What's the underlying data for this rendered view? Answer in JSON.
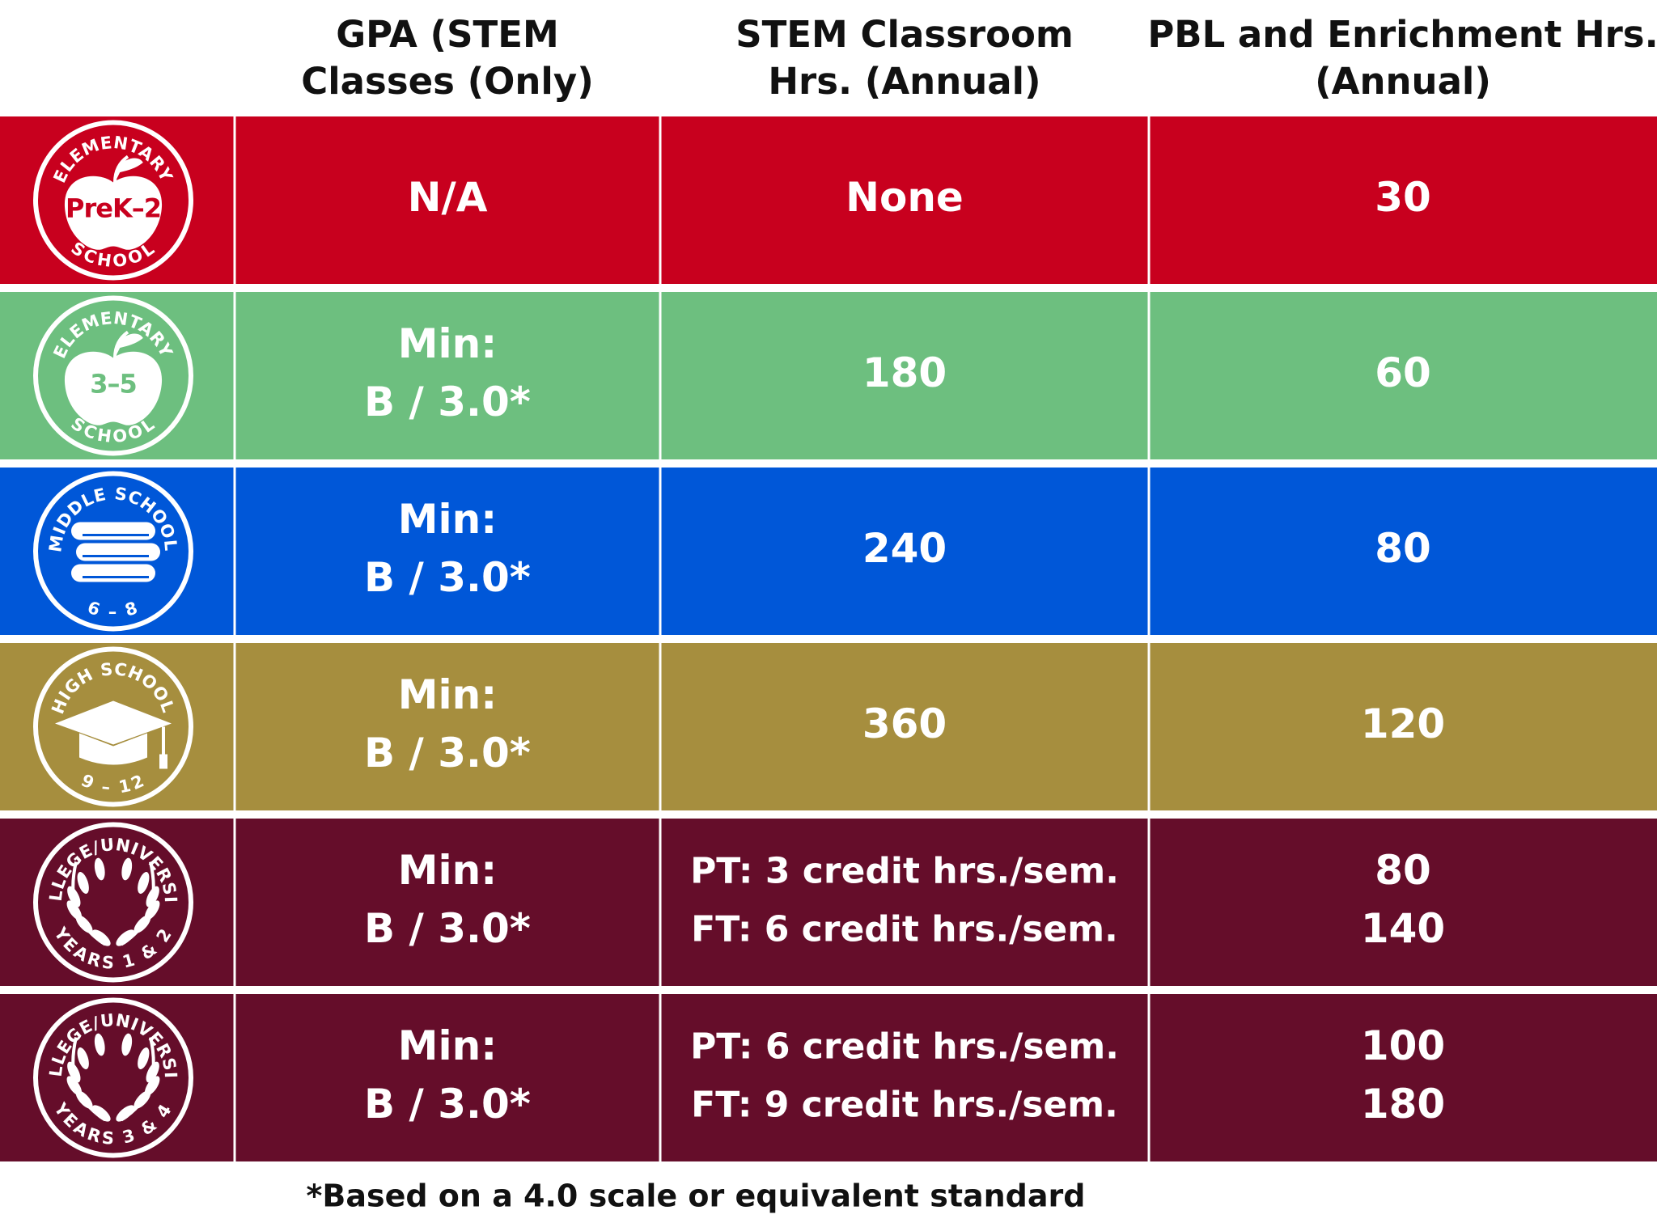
{
  "header": {
    "columns": [
      [
        "GPA (STEM",
        "Classes (Only)"
      ],
      [
        "STEM Classroom",
        "Hrs. (Annual)"
      ],
      [
        "PBL and Enrichment Hrs.",
        "(Annual)"
      ]
    ]
  },
  "table": {
    "rows": [
      {
        "badge": {
          "top": "ELEMENTARY",
          "center": "PreK–2",
          "bottom": "SCHOOL"
        },
        "gpa": [
          "N/A"
        ],
        "stem": [
          "None"
        ],
        "pbl": [
          "30"
        ]
      },
      {
        "badge": {
          "top": "ELEMENTARY",
          "center": "3–5",
          "bottom": "SCHOOL"
        },
        "gpa": [
          "Min:",
          "B / 3.0*"
        ],
        "stem": [
          "180"
        ],
        "pbl": [
          "60"
        ]
      },
      {
        "badge": {
          "top": "MIDDLE SCHOOL",
          "bottom": "6 – 8"
        },
        "gpa": [
          "Min:",
          "B / 3.0*"
        ],
        "stem": [
          "240"
        ],
        "pbl": [
          "80"
        ]
      },
      {
        "badge": {
          "top": "HIGH SCHOOL",
          "bottom": "9 – 12"
        },
        "gpa": [
          "Min:",
          "B / 3.0*"
        ],
        "stem": [
          "360"
        ],
        "pbl": [
          "120"
        ]
      },
      {
        "badge": {
          "top": "COLLEGE/UNIVERSITY",
          "bottom": "YEARS 1 & 2"
        },
        "gpa": [
          "Min:",
          "B / 3.0*"
        ],
        "stem": [
          "PT: 3 credit hrs./sem.",
          "FT: 6 credit hrs./sem."
        ],
        "pbl": [
          "80",
          "140"
        ]
      },
      {
        "badge": {
          "top": "COLLEGE/UNIVERSITY",
          "bottom": "YEARS 3 & 4"
        },
        "gpa": [
          "Min:",
          "B / 3.0*"
        ],
        "stem": [
          "PT: 6 credit hrs./sem.",
          "FT: 9 credit hrs./sem."
        ],
        "pbl": [
          "100",
          "180"
        ]
      }
    ]
  },
  "footnote": "*Based on a 4.0 scale or equivalent standard"
}
